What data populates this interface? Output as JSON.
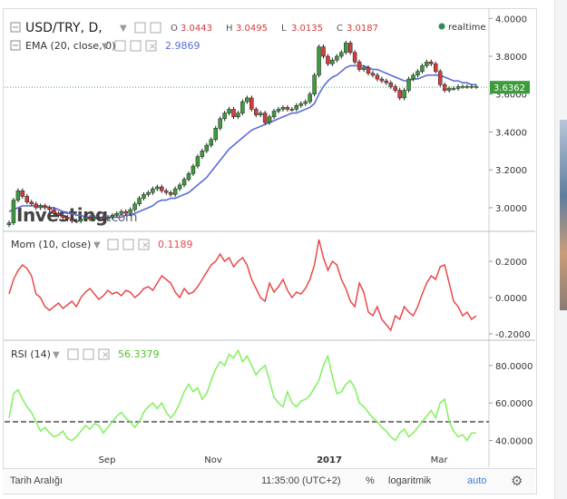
{
  "header": {
    "symbol": "USD/TRY, D,",
    "ohlc": [
      {
        "k": "O",
        "v": "3.0443"
      },
      {
        "k": "H",
        "v": "3.0495"
      },
      {
        "k": "L",
        "v": "3.0135"
      },
      {
        "k": "C",
        "v": "3.0187"
      }
    ],
    "realtime": "realtime",
    "ema_label": "EMA (20, close, 0)",
    "ema_value": "2.9869",
    "last_price_tag": "3.6362",
    "watermark_main": "Investing",
    "watermark_suffix": ".com"
  },
  "indicators": {
    "mom": {
      "label": "Mom (10, close)",
      "value": "0.1189"
    },
    "rsi": {
      "label": "RSI (14)",
      "value": "56.3379"
    }
  },
  "bottom_bar": {
    "date_range": "Tarih Aralığı",
    "time": "11:35:00 (UTC+2)",
    "percent": "%",
    "log": "logaritmik",
    "auto": "auto"
  },
  "colors": {
    "up": "#3d9b3d",
    "down": "#d23c3c",
    "ema": "#5a6bd6",
    "mom": "#e9494a",
    "rsi": "#7ef15a",
    "price_line": "#3cb043"
  },
  "chart_data": [
    {
      "type": "candlestick",
      "title": "USD/TRY, D,",
      "x_ticks": [
        "Sep",
        "Nov",
        "2017",
        "Mar"
      ],
      "y_ticks": [
        "3.0000",
        "3.2000",
        "3.4000",
        "3.6000",
        "3.8000",
        "4.0000"
      ],
      "ylim": [
        2.88,
        4.03
      ],
      "x": [
        0,
        5,
        10,
        15,
        20,
        25,
        30,
        35,
        40,
        45,
        50,
        55,
        60,
        65,
        70,
        75,
        80,
        85,
        90,
        95,
        100,
        105,
        110,
        115,
        120,
        125,
        130,
        135,
        140,
        145,
        150,
        155,
        160,
        165,
        170,
        175,
        180,
        185,
        190,
        195,
        200,
        205,
        210,
        215,
        220,
        225,
        230,
        235,
        240,
        245,
        250,
        255,
        260,
        265,
        270,
        275,
        280,
        285,
        290,
        295,
        300,
        305,
        310,
        315,
        320,
        325,
        330,
        335,
        340,
        345,
        350,
        355,
        360,
        365,
        370,
        375,
        380,
        385,
        390,
        395,
        400,
        405,
        410,
        415,
        420,
        425,
        430,
        435,
        440,
        445,
        450,
        455,
        460,
        465,
        470,
        475,
        480,
        485,
        490,
        495,
        500,
        505,
        510,
        515,
        520
      ],
      "close": [
        2.92,
        3.04,
        3.09,
        3.06,
        3.03,
        3.02,
        3.0,
        3.01,
        3.0,
        2.99,
        2.97,
        2.96,
        2.95,
        2.94,
        2.93,
        2.93,
        2.94,
        2.95,
        2.94,
        2.95,
        2.95,
        2.94,
        2.95,
        2.96,
        2.97,
        2.98,
        2.97,
        2.99,
        3.02,
        3.05,
        3.07,
        3.08,
        3.1,
        3.11,
        3.09,
        3.08,
        3.07,
        3.1,
        3.12,
        3.15,
        3.18,
        3.22,
        3.27,
        3.3,
        3.33,
        3.36,
        3.42,
        3.47,
        3.5,
        3.52,
        3.48,
        3.5,
        3.56,
        3.58,
        3.52,
        3.49,
        3.5,
        3.45,
        3.48,
        3.51,
        3.52,
        3.53,
        3.52,
        3.52,
        3.54,
        3.55,
        3.56,
        3.6,
        3.7,
        3.85,
        3.8,
        3.76,
        3.78,
        3.8,
        3.82,
        3.87,
        3.82,
        3.77,
        3.73,
        3.74,
        3.71,
        3.7,
        3.68,
        3.67,
        3.66,
        3.64,
        3.62,
        3.58,
        3.62,
        3.68,
        3.7,
        3.72,
        3.75,
        3.77,
        3.76,
        3.72,
        3.65,
        3.62,
        3.63,
        3.63,
        3.64,
        3.64,
        3.64,
        3.64,
        3.64
      ],
      "ema": [
        2.98,
        2.99,
        3.0,
        3.01,
        3.01,
        3.01,
        3.01,
        3.01,
        3.01,
        3.0,
        3.0,
        2.99,
        2.98,
        2.97,
        2.97,
        2.96,
        2.96,
        2.95,
        2.95,
        2.95,
        2.95,
        2.95,
        2.95,
        2.95,
        2.95,
        2.95,
        2.96,
        2.96,
        2.97,
        2.98,
        2.99,
        3.0,
        3.01,
        3.03,
        3.04,
        3.04,
        3.05,
        3.05,
        3.06,
        3.07,
        3.08,
        3.1,
        3.12,
        3.14,
        3.16,
        3.19,
        3.22,
        3.25,
        3.28,
        3.31,
        3.33,
        3.35,
        3.37,
        3.39,
        3.41,
        3.42,
        3.43,
        3.44,
        3.45,
        3.46,
        3.47,
        3.48,
        3.49,
        3.5,
        3.5,
        3.51,
        3.52,
        3.53,
        3.55,
        3.6,
        3.64,
        3.67,
        3.69,
        3.7,
        3.72,
        3.74,
        3.75,
        3.75,
        3.75,
        3.75,
        3.74,
        3.73,
        3.73,
        3.72,
        3.71,
        3.7,
        3.69,
        3.68,
        3.67,
        3.67,
        3.68,
        3.68,
        3.69,
        3.7,
        3.7,
        3.7,
        3.7,
        3.69,
        3.68,
        3.67,
        3.67,
        3.66,
        3.66,
        3.65,
        3.65
      ],
      "last_price": 3.6362,
      "legend": "top-left",
      "grid": false
    },
    {
      "type": "line",
      "title": "Mom (10, close)",
      "y_ticks": [
        "-0.2000",
        "0.0000",
        "0.2000"
      ],
      "ylim": [
        -0.22,
        0.35
      ],
      "x": [
        0,
        5,
        10,
        15,
        20,
        25,
        30,
        35,
        40,
        45,
        50,
        55,
        60,
        65,
        70,
        75,
        80,
        85,
        90,
        95,
        100,
        105,
        110,
        115,
        120,
        125,
        130,
        135,
        140,
        145,
        150,
        155,
        160,
        165,
        170,
        175,
        180,
        185,
        190,
        195,
        200,
        205,
        210,
        215,
        220,
        225,
        230,
        235,
        240,
        245,
        250,
        255,
        260,
        265,
        270,
        275,
        280,
        285,
        290,
        295,
        300,
        305,
        310,
        315,
        320,
        325,
        330,
        335,
        340,
        345,
        350,
        355,
        360,
        365,
        370,
        375,
        380,
        385,
        390,
        395,
        400,
        405,
        410,
        415,
        420,
        425,
        430,
        435,
        440,
        445,
        450,
        455,
        460,
        465,
        470,
        475,
        480,
        485,
        490,
        495,
        500,
        505,
        510,
        515,
        520
      ],
      "values": [
        0.02,
        0.1,
        0.15,
        0.18,
        0.16,
        0.12,
        0.02,
        0.0,
        -0.05,
        -0.07,
        -0.05,
        -0.03,
        -0.06,
        -0.04,
        -0.02,
        -0.05,
        0.0,
        0.03,
        0.05,
        0.02,
        -0.01,
        0.01,
        0.04,
        0.02,
        0.03,
        0.01,
        0.04,
        0.03,
        0.0,
        0.02,
        0.05,
        0.06,
        0.04,
        0.08,
        0.12,
        0.1,
        0.08,
        0.03,
        0.0,
        0.05,
        0.02,
        0.03,
        0.06,
        0.1,
        0.14,
        0.18,
        0.2,
        0.24,
        0.2,
        0.22,
        0.17,
        0.2,
        0.22,
        0.18,
        0.1,
        0.05,
        0.0,
        -0.02,
        0.08,
        0.03,
        0.06,
        0.1,
        0.04,
        0.0,
        0.03,
        0.02,
        0.05,
        0.1,
        0.18,
        0.32,
        0.22,
        0.15,
        0.2,
        0.18,
        0.1,
        0.05,
        -0.02,
        -0.05,
        0.08,
        0.03,
        -0.08,
        -0.1,
        -0.05,
        -0.12,
        -0.15,
        -0.18,
        -0.1,
        -0.12,
        -0.05,
        -0.08,
        -0.1,
        -0.05,
        0.02,
        0.08,
        0.12,
        0.1,
        0.17,
        0.18,
        0.08,
        -0.02,
        -0.05,
        -0.1,
        -0.08,
        -0.12,
        -0.1
      ],
      "legend": "top-left"
    },
    {
      "type": "line",
      "title": "RSI (14)",
      "y_ticks": [
        "40.0000",
        "60.0000",
        "80.0000"
      ],
      "ylim": [
        33,
        92
      ],
      "reference_line": 50,
      "x": [
        0,
        5,
        10,
        15,
        20,
        25,
        30,
        35,
        40,
        45,
        50,
        55,
        60,
        65,
        70,
        75,
        80,
        85,
        90,
        95,
        100,
        105,
        110,
        115,
        120,
        125,
        130,
        135,
        140,
        145,
        150,
        155,
        160,
        165,
        170,
        175,
        180,
        185,
        190,
        195,
        200,
        205,
        210,
        215,
        220,
        225,
        230,
        235,
        240,
        245,
        250,
        255,
        260,
        265,
        270,
        275,
        280,
        285,
        290,
        295,
        300,
        305,
        310,
        315,
        320,
        325,
        330,
        335,
        340,
        345,
        350,
        355,
        360,
        365,
        370,
        375,
        380,
        385,
        390,
        395,
        400,
        405,
        410,
        415,
        420,
        425,
        430,
        435,
        440,
        445,
        450,
        455,
        460,
        465,
        470,
        475,
        480,
        485,
        490,
        495,
        500,
        505,
        510,
        515,
        520
      ],
      "values": [
        52,
        65,
        67,
        62,
        58,
        55,
        50,
        45,
        47,
        44,
        42,
        43,
        45,
        41,
        40,
        42,
        45,
        48,
        46,
        49,
        48,
        44,
        47,
        50,
        53,
        55,
        52,
        50,
        47,
        50,
        55,
        58,
        60,
        57,
        60,
        55,
        52,
        55,
        60,
        66,
        70,
        66,
        68,
        62,
        65,
        72,
        78,
        82,
        80,
        86,
        84,
        88,
        82,
        85,
        80,
        75,
        78,
        80,
        72,
        63,
        60,
        58,
        66,
        60,
        58,
        61,
        62,
        64,
        68,
        72,
        80,
        85,
        74,
        65,
        66,
        70,
        72,
        68,
        60,
        58,
        55,
        52,
        50,
        47,
        45,
        42,
        40,
        44,
        46,
        42,
        44,
        47,
        50,
        53,
        56,
        52,
        60,
        62,
        50,
        45,
        42,
        43,
        40,
        44,
        44
      ],
      "legend": "top-left"
    }
  ]
}
